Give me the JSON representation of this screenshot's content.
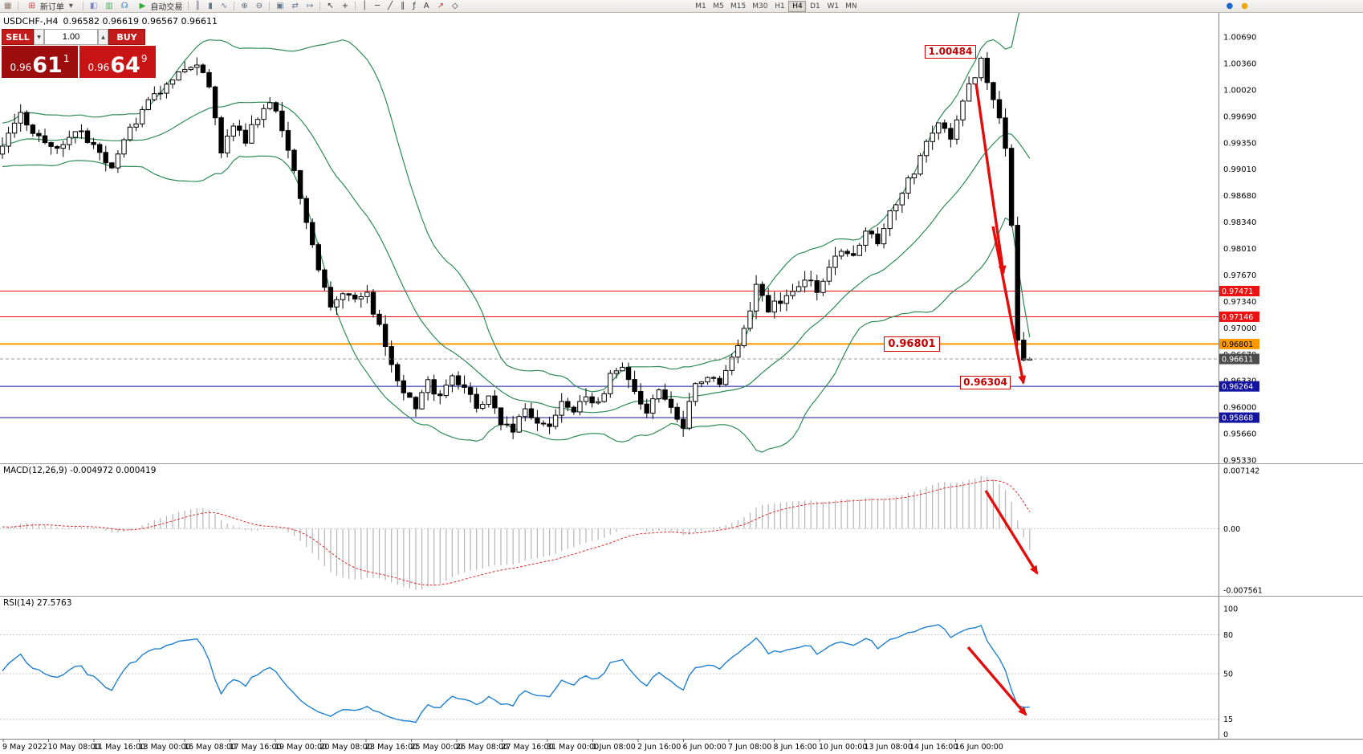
{
  "toolbar": {
    "new_order": "新订单",
    "autotrade": "自动交易",
    "timeframes": [
      "M1",
      "M5",
      "M15",
      "M30",
      "H1",
      "H4",
      "D1",
      "W1",
      "MN"
    ],
    "active_timeframe": "H4",
    "icons": [
      {
        "name": "chart-window-icon",
        "glyph": "▦",
        "color": "#8a7a66"
      },
      {
        "name": "new-order-icon",
        "glyph": "⊞",
        "color": "#cc4444"
      },
      {
        "name": "new-order-caret-icon",
        "glyph": "▾",
        "color": "#555555"
      },
      {
        "name": "metaeditor-icon",
        "glyph": "◧",
        "color": "#7a88cc"
      },
      {
        "name": "market-watch-icon",
        "glyph": "▥",
        "color": "#55aa66"
      },
      {
        "name": "support-icon",
        "glyph": "☊",
        "color": "#3377cc"
      },
      {
        "name": "autotrade-play-icon",
        "glyph": "▶",
        "color": "#2faa2f"
      },
      {
        "name": "bars-icon",
        "glyph": "║",
        "color": "#667788"
      },
      {
        "name": "candles-icon",
        "glyph": "▮",
        "color": "#667788"
      },
      {
        "name": "line-chart-icon",
        "glyph": "∿",
        "color": "#667788"
      },
      {
        "name": "zoom-in-icon",
        "glyph": "⊕",
        "color": "#556677"
      },
      {
        "name": "zoom-out-icon",
        "glyph": "⊖",
        "color": "#556677"
      },
      {
        "name": "windows-icon",
        "glyph": "▣",
        "color": "#667788"
      },
      {
        "name": "auto-scroll-icon",
        "glyph": "⇄",
        "color": "#667788"
      },
      {
        "name": "chart-shift-icon",
        "glyph": "↦",
        "color": "#667788"
      },
      {
        "name": "cursor-icon",
        "glyph": "↖",
        "color": "#333333"
      },
      {
        "name": "crosshair-icon",
        "glyph": "+",
        "color": "#333333"
      },
      {
        "name": "vertical-line-icon",
        "glyph": "│",
        "color": "#333333"
      },
      {
        "name": "horizontal-line-icon",
        "glyph": "─",
        "color": "#333333"
      },
      {
        "name": "trendline-icon",
        "glyph": "╱",
        "color": "#333333"
      },
      {
        "name": "channel-icon",
        "glyph": "∥",
        "color": "#333333"
      },
      {
        "name": "fibonacci-icon",
        "glyph": "ƒ",
        "color": "#333333"
      },
      {
        "name": "text-icon",
        "glyph": "A",
        "color": "#333333"
      },
      {
        "name": "arrow-tool-icon",
        "glyph": "↗",
        "color": "#cc3333"
      },
      {
        "name": "shapes-icon",
        "glyph": "◇",
        "color": "#333333"
      },
      {
        "name": "community-icon",
        "glyph": "●",
        "color": "#1e66cc"
      },
      {
        "name": "alerts-icon",
        "glyph": "●",
        "color": "#f0a800"
      }
    ]
  },
  "chart": {
    "symbol_tf": "USDCHF-,H4",
    "ohlc": "0.96582 0.96619 0.96567 0.96611"
  },
  "trade_panel": {
    "sell_label": "SELL",
    "buy_label": "BUY",
    "volume": "1.00",
    "spin_down": "▼",
    "spin_up": "▲",
    "sell_small": "0.96",
    "sell_big": "61",
    "sell_sup": "1",
    "buy_small": "0.96",
    "buy_big": "64",
    "buy_sup": "9"
  },
  "chart_data": {
    "type": "candlestick",
    "symbol": "USDCHF-",
    "timeframe": "H4",
    "ohlc": {
      "open": 0.96582,
      "high": 0.96619,
      "low": 0.96567,
      "close": 0.96611
    },
    "y_axis": {
      "labels": [
        "1.00690",
        "1.00360",
        "1.00020",
        "0.99690",
        "0.99350",
        "0.99010",
        "0.98680",
        "0.98340",
        "0.98010",
        "0.97670",
        "0.97340",
        "0.97000",
        "0.96670",
        "0.96330",
        "0.96000",
        "0.95660",
        "0.95330"
      ],
      "min": 0.9533,
      "max": 1.0069
    },
    "visible_candles": 170,
    "close_anchors": [
      [
        0,
        0.9935
      ],
      [
        3,
        0.9968
      ],
      [
        6,
        0.9941
      ],
      [
        9,
        0.9926
      ],
      [
        12,
        0.9952
      ],
      [
        15,
        0.993
      ],
      [
        18,
        0.9907
      ],
      [
        21,
        0.9952
      ],
      [
        24,
        0.9988
      ],
      [
        27,
        1.0006
      ],
      [
        30,
        1.0028
      ],
      [
        32,
        1.0038
      ],
      [
        34,
        1.0008
      ],
      [
        36,
        0.9925
      ],
      [
        38,
        0.9958
      ],
      [
        40,
        0.9938
      ],
      [
        42,
        0.9968
      ],
      [
        44,
        0.9986
      ],
      [
        46,
        0.9955
      ],
      [
        48,
        0.99
      ],
      [
        50,
        0.9838
      ],
      [
        52,
        0.9776
      ],
      [
        54,
        0.973
      ],
      [
        56,
        0.9748
      ],
      [
        58,
        0.9737
      ],
      [
        60,
        0.9742
      ],
      [
        62,
        0.97
      ],
      [
        64,
        0.9652
      ],
      [
        66,
        0.962
      ],
      [
        68,
        0.96
      ],
      [
        70,
        0.9632
      ],
      [
        72,
        0.9612
      ],
      [
        74,
        0.964
      ],
      [
        76,
        0.962
      ],
      [
        78,
        0.9602
      ],
      [
        80,
        0.9612
      ],
      [
        82,
        0.9582
      ],
      [
        84,
        0.9566
      ],
      [
        86,
        0.96
      ],
      [
        88,
        0.9582
      ],
      [
        90,
        0.9572
      ],
      [
        92,
        0.9606
      ],
      [
        94,
        0.959
      ],
      [
        96,
        0.9616
      ],
      [
        98,
        0.9602
      ],
      [
        100,
        0.964
      ],
      [
        102,
        0.9652
      ],
      [
        104,
        0.9622
      ],
      [
        106,
        0.9592
      ],
      [
        108,
        0.962
      ],
      [
        110,
        0.96
      ],
      [
        112,
        0.9578
      ],
      [
        114,
        0.9628
      ],
      [
        116,
        0.9642
      ],
      [
        118,
        0.9632
      ],
      [
        120,
        0.966
      ],
      [
        122,
        0.97
      ],
      [
        124,
        0.9754
      ],
      [
        126,
        0.9722
      ],
      [
        128,
        0.9736
      ],
      [
        130,
        0.975
      ],
      [
        132,
        0.9764
      ],
      [
        134,
        0.9748
      ],
      [
        136,
        0.978
      ],
      [
        138,
        0.98
      ],
      [
        140,
        0.9792
      ],
      [
        142,
        0.9828
      ],
      [
        144,
        0.9812
      ],
      [
        146,
        0.9846
      ],
      [
        148,
        0.987
      ],
      [
        150,
        0.99
      ],
      [
        152,
        0.9932
      ],
      [
        154,
        0.9958
      ],
      [
        156,
        0.9942
      ],
      [
        158,
        0.999
      ],
      [
        160,
        1.0022
      ],
      [
        161,
        1.0042
      ],
      [
        162,
        1.0015
      ],
      [
        163,
        0.9992
      ],
      [
        164,
        0.9962
      ],
      [
        165,
        0.993
      ],
      [
        166,
        0.983
      ],
      [
        167,
        0.969
      ],
      [
        168,
        0.9655
      ],
      [
        169,
        0.96611
      ]
    ],
    "levels": [
      {
        "price": 0.97471,
        "color": "#ee1111",
        "text_color": "#ffffff",
        "label": "0.97471",
        "width": 1
      },
      {
        "price": 0.97146,
        "color": "#ee1111",
        "text_color": "#ffffff",
        "label": "0.97146",
        "width": 1
      },
      {
        "price": 0.96801,
        "color": "#ff9800",
        "text_color": "#000000",
        "label": "0.96801",
        "width": 2
      },
      {
        "price": 0.96264,
        "color": "#1414a0",
        "text_color": "#ffffff",
        "label": "0.96264",
        "width": 1
      },
      {
        "price": 0.95868,
        "color": "#1414a0",
        "text_color": "#ffffff",
        "label": "0.95868",
        "width": 1
      }
    ],
    "current_price": {
      "value": 0.96611,
      "label": "0.96611",
      "tag_color": "#4d4d4d"
    },
    "bollinger": {
      "period": 20,
      "deviation": 2,
      "color": "#2e8b57"
    },
    "macd": {
      "display": "MACD(12,26,9) -0.004972 0.000419",
      "main": -0.004972,
      "signal": 0.000419,
      "axis_labels": [
        "0.007142",
        "0.00",
        "-0.007561"
      ],
      "axis_values": [
        0.007142,
        0,
        -0.007561
      ],
      "hist_color": "#b4b4b4",
      "signal_color": "#e03030"
    },
    "rsi": {
      "display": "RSI(14) 27.5763",
      "value": 27.5763,
      "axis_labels": [
        "100",
        "80",
        "50",
        "15",
        "0"
      ],
      "axis_values": [
        100,
        80,
        50,
        15,
        0
      ],
      "levels": [
        80,
        50,
        15
      ],
      "color": "#1f7fd0"
    },
    "annotations": {
      "high_label": "1.00484",
      "mid_label": "0.96801",
      "low_label": "0.96304",
      "arrow_color": "#e40b0b",
      "arrows": [
        [
          1216,
          104,
          1250,
          340
        ],
        [
          1237,
          282,
          1275,
          477
        ],
        [
          1228,
          611,
          1292,
          714
        ],
        [
          1206,
          806,
          1278,
          890
        ]
      ]
    },
    "time_axis": [
      "9 May 2022",
      "10 May 08:00",
      "11 May 16:00",
      "13 May 00:00",
      "16 May 08:00",
      "17 May 16:00",
      "19 May 00:00",
      "20 May 08:00",
      "23 May 16:00",
      "25 May 00:00",
      "26 May 08:00",
      "27 May 16:00",
      "31 May 00:00",
      "1 Jun 08:00",
      "2 Jun 16:00",
      "6 Jun 00:00",
      "7 Jun 08:00",
      "8 Jun 16:00",
      "10 Jun 00:00",
      "13 Jun 08:00",
      "14 Jun 16:00",
      "16 Jun 00:00"
    ]
  }
}
